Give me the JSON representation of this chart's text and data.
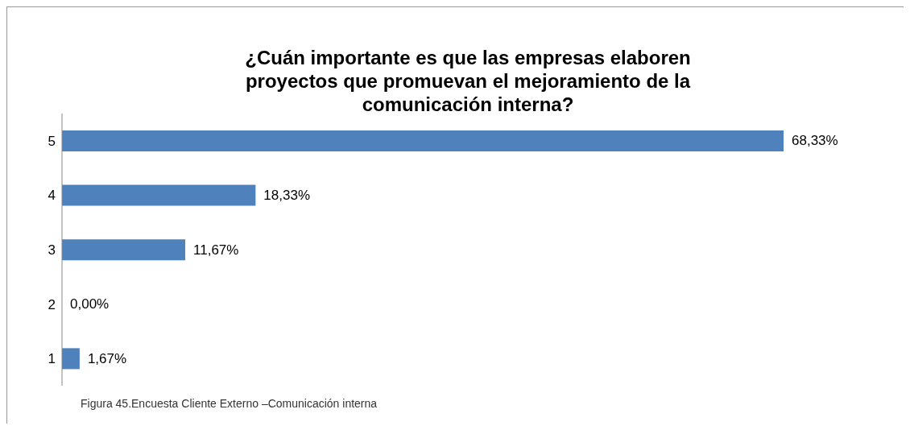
{
  "chart_data": {
    "type": "bar",
    "orientation": "horizontal",
    "title": "¿Cuán importante es que las empresas elaboren proyectos que promuevan el mejoramiento de la comunicación interna?",
    "categories": [
      "5",
      "4",
      "3",
      "2",
      "1"
    ],
    "values": [
      68.33,
      18.33,
      11.67,
      0,
      1.67
    ],
    "value_labels": [
      "68,33%",
      "18,33%",
      "11,67%",
      "0,00%",
      "1,67%"
    ],
    "color": "#4f81bd",
    "grid": false,
    "legend": false,
    "annotations": [
      "Figura 45.Encuesta Cliente Externo –Comunicación interna"
    ]
  }
}
